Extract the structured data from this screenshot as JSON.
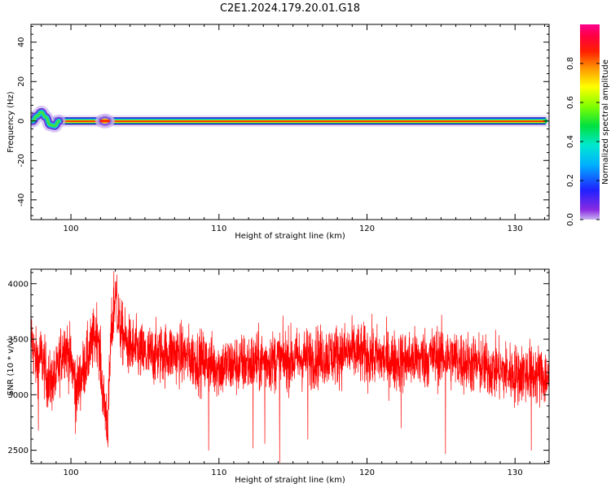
{
  "figure": {
    "title": "C2E1.2024.179.20.01.G18"
  },
  "chart_data": [
    {
      "type": "heatmap",
      "xlabel": "Height of straight line (km)",
      "ylabel": "Frequency (Hz)",
      "xlim": [
        97.3,
        132.3
      ],
      "ylim": [
        -50,
        49
      ],
      "x_ticks": [
        100,
        110,
        120,
        130
      ],
      "y_ticks": [
        -40,
        -20,
        0,
        20,
        40
      ],
      "colorbar": {
        "label": "Normalized spectral amplitude",
        "range": [
          0.0,
          1.0
        ],
        "ticks": [
          "0.0",
          "0.2",
          "0.4",
          "0.6",
          "0.8"
        ],
        "colormap": "rainbow (violet → blue → cyan → green → yellow → red → magenta)"
      },
      "ridge": {
        "description": "Main spectral ridge near 0 Hz",
        "x_start": 98.8,
        "x_end": 132.3,
        "frequency": 0,
        "early_wiggle": [
          {
            "x": 97.4,
            "y": 0.0
          },
          {
            "x": 97.7,
            "y": 2.5
          },
          {
            "x": 98.0,
            "y": 4.5
          },
          {
            "x": 98.3,
            "y": 2.0
          },
          {
            "x": 98.6,
            "y": -2.0
          },
          {
            "x": 98.9,
            "y": -2.5
          },
          {
            "x": 99.2,
            "y": 0.0
          }
        ],
        "blob_x": 102.3
      },
      "grid": false
    },
    {
      "type": "line",
      "xlabel": "Height of straight line (km)",
      "ylabel": "SNR (10 * v/v)",
      "xlim": [
        97.3,
        132.3
      ],
      "ylim": [
        2380,
        4130
      ],
      "x_ticks": [
        100,
        110,
        120,
        130
      ],
      "y_ticks": [
        2500,
        3000,
        3500,
        4000
      ],
      "series": [
        {
          "color": "#ff0000",
          "baseline_points": [
            {
              "x": 97.3,
              "y": 3550
            },
            {
              "x": 97.6,
              "y": 3300
            },
            {
              "x": 98.0,
              "y": 3350
            },
            {
              "x": 98.5,
              "y": 3100
            },
            {
              "x": 99.0,
              "y": 3150
            },
            {
              "x": 99.3,
              "y": 3350
            },
            {
              "x": 99.6,
              "y": 3450
            },
            {
              "x": 100.0,
              "y": 3300
            },
            {
              "x": 100.4,
              "y": 3050
            },
            {
              "x": 100.9,
              "y": 3250
            },
            {
              "x": 101.3,
              "y": 3400
            },
            {
              "x": 101.8,
              "y": 3600
            },
            {
              "x": 102.2,
              "y": 2950
            },
            {
              "x": 102.5,
              "y": 2750
            },
            {
              "x": 102.7,
              "y": 3500
            },
            {
              "x": 103.0,
              "y": 3900
            },
            {
              "x": 103.3,
              "y": 3600
            },
            {
              "x": 103.8,
              "y": 3450
            },
            {
              "x": 105.0,
              "y": 3350
            },
            {
              "x": 107.0,
              "y": 3380
            },
            {
              "x": 110.0,
              "y": 3250
            },
            {
              "x": 113.0,
              "y": 3300
            },
            {
              "x": 116.0,
              "y": 3330
            },
            {
              "x": 119.0,
              "y": 3380
            },
            {
              "x": 122.0,
              "y": 3300
            },
            {
              "x": 125.0,
              "y": 3350
            },
            {
              "x": 128.0,
              "y": 3250
            },
            {
              "x": 130.0,
              "y": 3180
            },
            {
              "x": 131.0,
              "y": 3200
            },
            {
              "x": 132.3,
              "y": 3150
            }
          ],
          "noise_amplitude": 180,
          "downward_spikes": [
            {
              "x": 97.8,
              "y": 2680
            },
            {
              "x": 100.3,
              "y": 2650
            },
            {
              "x": 102.5,
              "y": 2530
            },
            {
              "x": 109.3,
              "y": 2500
            },
            {
              "x": 112.3,
              "y": 2520
            },
            {
              "x": 113.1,
              "y": 2560
            },
            {
              "x": 114.1,
              "y": 2390
            },
            {
              "x": 116.0,
              "y": 2600
            },
            {
              "x": 122.3,
              "y": 2700
            },
            {
              "x": 125.3,
              "y": 2470
            },
            {
              "x": 131.1,
              "y": 2500
            }
          ],
          "upward_spikes": [
            {
              "x": 102.9,
              "y": 4110
            },
            {
              "x": 103.1,
              "y": 4080
            }
          ]
        }
      ],
      "grid": false
    }
  ]
}
